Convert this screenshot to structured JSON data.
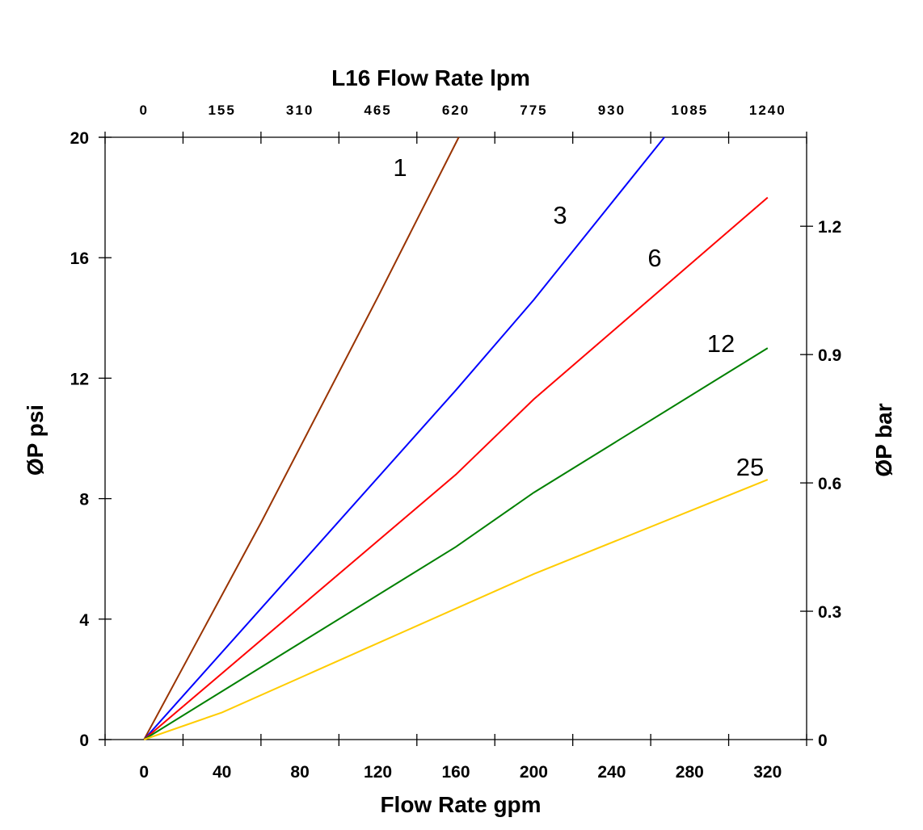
{
  "chart_data": {
    "type": "line",
    "title": "L16 Flow Rate lpm",
    "xlabel": "Flow Rate gpm",
    "ylabel": "ØP psi",
    "y2label": "ØP bar",
    "xlim": [
      -20,
      340
    ],
    "ylim": [
      0,
      20
    ],
    "y2lim": [
      0,
      1.408
    ],
    "grid": false,
    "x_ticks": [
      0,
      40,
      80,
      120,
      160,
      200,
      240,
      280,
      320
    ],
    "y_ticks": [
      0,
      4,
      8,
      12,
      16,
      20
    ],
    "y2_ticks": [
      "0",
      "0.3",
      "0.6",
      "0.9",
      "1.2"
    ],
    "top_ticks": [
      "0",
      "155",
      "310",
      "465",
      "620",
      "775",
      "930",
      "1085",
      "1240"
    ],
    "series": [
      {
        "name": "1",
        "color": "#993300",
        "points": [
          [
            0,
            0
          ],
          [
            60,
            7.2
          ],
          [
            120,
            14.7
          ],
          [
            161.5,
            20
          ]
        ]
      },
      {
        "name": "3",
        "color": "#0000ff",
        "points": [
          [
            0,
            0
          ],
          [
            80,
            5.8
          ],
          [
            160,
            11.6
          ],
          [
            200,
            14.6
          ],
          [
            267,
            20
          ]
        ]
      },
      {
        "name": "6",
        "color": "#ff0000",
        "points": [
          [
            0,
            0
          ],
          [
            80,
            4.4
          ],
          [
            160,
            8.8
          ],
          [
            200,
            11.3
          ],
          [
            320,
            18.0
          ]
        ]
      },
      {
        "name": "12",
        "color": "#008000",
        "points": [
          [
            0,
            0
          ],
          [
            80,
            3.2
          ],
          [
            160,
            6.4
          ],
          [
            200,
            8.2
          ],
          [
            320,
            13.0
          ]
        ]
      },
      {
        "name": "25",
        "color": "#ffcc00",
        "points": [
          [
            0,
            0
          ],
          [
            40,
            0.9
          ],
          [
            120,
            3.2
          ],
          [
            200,
            5.5
          ],
          [
            320,
            8.63
          ]
        ]
      }
    ]
  }
}
